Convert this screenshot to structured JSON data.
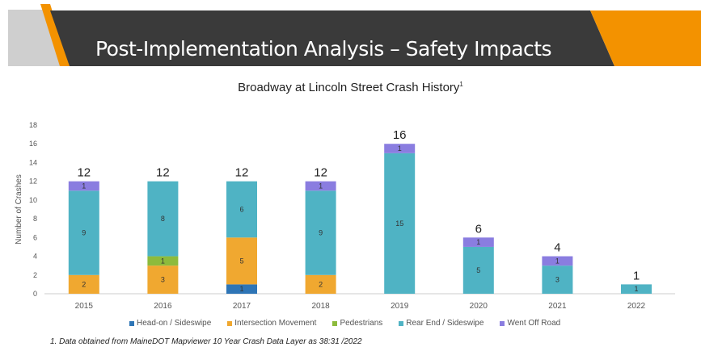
{
  "slide": {
    "title": "Post-Implementation Analysis – Safety Impacts",
    "footnote": "1. Data obtained from MaineDOT Mapviewer 10 Year Crash Data Layer as 38:31 /2022"
  },
  "colors": {
    "banner": "#3a3a3a",
    "accent": "#f39200",
    "gray": "#cfcfcf"
  },
  "chart_data": {
    "type": "bar",
    "stacked": true,
    "title": "Broadway at Lincoln Street Crash History",
    "title_sup": "1",
    "xlabel": "",
    "ylabel": "Number of Crashes",
    "ylim": [
      0,
      18
    ],
    "yticks": [
      0,
      2,
      4,
      6,
      8,
      10,
      12,
      14,
      16,
      18
    ],
    "grid": false,
    "legend": "bottom",
    "categories": [
      "2015",
      "2016",
      "2017",
      "2018",
      "2019",
      "2020",
      "2021",
      "2022"
    ],
    "totals": [
      12,
      12,
      12,
      12,
      16,
      6,
      4,
      1
    ],
    "series": [
      {
        "name": "Head-on / Sideswipe",
        "color": "#2e75b6",
        "values": [
          0,
          0,
          1,
          0,
          0,
          0,
          0,
          0
        ]
      },
      {
        "name": "Intersection Movement",
        "color": "#f0a830",
        "values": [
          2,
          3,
          5,
          2,
          0,
          0,
          0,
          0
        ]
      },
      {
        "name": "Pedestrians",
        "color": "#8dbb3c",
        "values": [
          0,
          1,
          0,
          0,
          0,
          0,
          0,
          0
        ]
      },
      {
        "name": "Rear End / Sideswipe",
        "color": "#4fb3c4",
        "values": [
          9,
          8,
          6,
          9,
          15,
          5,
          3,
          1
        ]
      },
      {
        "name": "Went Off Road",
        "color": "#8a7de0",
        "values": [
          1,
          0,
          0,
          1,
          1,
          1,
          1,
          0
        ]
      }
    ]
  }
}
